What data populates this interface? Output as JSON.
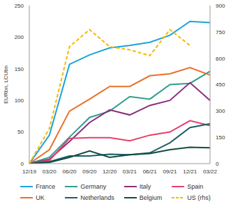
{
  "chart_data": {
    "type": "line",
    "y_label": "EURbn, LCUbn",
    "categories": [
      "12/19",
      "03/20",
      "06/20",
      "09/20",
      "12/20",
      "03/21",
      "06/21",
      "09/21",
      "12/21",
      "03/22"
    ],
    "ylim": [
      0,
      250
    ],
    "yticks": [
      0,
      50,
      100,
      150,
      200,
      250
    ],
    "y2lim": [
      0,
      900
    ],
    "y2ticks": [
      0,
      150,
      300,
      450,
      600,
      750,
      900
    ],
    "grid": false,
    "legend": "bottom",
    "series": [
      {
        "name": "France",
        "color": "#1aa3dd",
        "values": [
          0,
          45,
          157,
          172,
          183,
          187,
          192,
          203,
          225,
          223
        ]
      },
      {
        "name": "Germany",
        "color": "#2e9e8e",
        "values": [
          0,
          10,
          42,
          73,
          83,
          106,
          102,
          125,
          127,
          146
        ]
      },
      {
        "name": "Italy",
        "color": "#8b2c7c",
        "values": [
          0,
          7,
          35,
          65,
          85,
          77,
          92,
          100,
          128,
          100
        ]
      },
      {
        "name": "Spain",
        "color": "#e83e6c",
        "values": [
          0,
          5,
          40,
          41,
          41,
          36,
          45,
          50,
          68,
          60
        ]
      },
      {
        "name": "UK",
        "color": "#e8702a",
        "values": [
          0,
          22,
          83,
          102,
          122,
          122,
          139,
          142,
          152,
          140
        ]
      },
      {
        "name": "Netherlands",
        "color": "#1b5e66",
        "values": [
          0,
          3,
          12,
          12,
          15,
          14,
          17,
          33,
          57,
          63
        ]
      },
      {
        "name": "Belgium",
        "color": "#0e4d40",
        "values": [
          0,
          2,
          10,
          20,
          10,
          14,
          16,
          22,
          26,
          25
        ]
      },
      {
        "name": "US (rhs)",
        "color": "#f5b800",
        "axis": "y2",
        "line_style": "dashed",
        "values": [
          0,
          200,
          666,
          763,
          666,
          648,
          615,
          763,
          673,
          null
        ]
      }
    ]
  }
}
